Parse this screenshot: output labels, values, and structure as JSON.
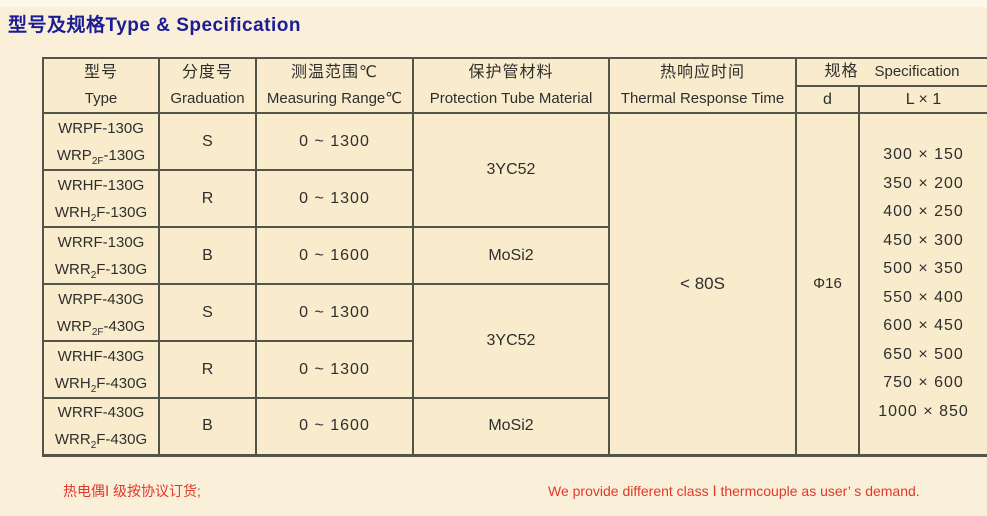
{
  "title": "型号及规格Type & Specification",
  "colors": {
    "background": "#FAF0DA",
    "cell_background": "#F9ECCC",
    "border": "#55544A",
    "title": "#1C1C96",
    "note_red": "#E0392B"
  },
  "table": {
    "headers": {
      "type": {
        "zh": "型号",
        "en": "Type"
      },
      "graduation": {
        "zh": "分度号",
        "en": "Graduation"
      },
      "range": {
        "zh": "测温范围℃",
        "en": "Measuring Range℃"
      },
      "material": {
        "zh": "保护管材料",
        "en": "Protection Tube Material"
      },
      "response": {
        "zh": "热响应时间",
        "en": "Thermal Response Time"
      },
      "spec": {
        "zh": "规格",
        "en": "Specification"
      },
      "d": "d",
      "l": "L × 1"
    },
    "rows": [
      {
        "models": [
          "WRPF-130G",
          "WRP~2F~-130G"
        ],
        "graduation": "S",
        "range": "0 ~ 1300"
      },
      {
        "models": [
          "WRHF-130G",
          "WRH~2~F-130G"
        ],
        "graduation": "R",
        "range": "0 ~ 1300"
      },
      {
        "models": [
          "WRRF-130G",
          "WRR~2~F-130G"
        ],
        "graduation": "B",
        "range": "0 ~ 1600"
      },
      {
        "models": [
          "WRPF-430G",
          "WRP~2F~-430G"
        ],
        "graduation": "S",
        "range": "0 ~ 1300"
      },
      {
        "models": [
          "WRHF-430G",
          "WRH~2~F-430G"
        ],
        "graduation": "R",
        "range": "0 ~ 1300"
      },
      {
        "models": [
          "WRRF-430G",
          "WRR~2~F-430G"
        ],
        "graduation": "B",
        "range": "0 ~ 1600"
      }
    ],
    "materials": [
      {
        "value": "3YC52"
      },
      {
        "value": "MoSi2"
      },
      {
        "value": "3YC52"
      },
      {
        "value": "MoSi2"
      }
    ],
    "thermal_response": "< 80S",
    "d_value": "Φ16",
    "l_values": [
      "300 × 150",
      "350 × 200",
      "400 × 250",
      "450 × 300",
      "500 × 350",
      "550 × 400",
      "600 × 450",
      "650 × 500",
      "750 × 600",
      "1000 × 850"
    ]
  },
  "notes": {
    "zh": "热电偶Ⅰ 级按协议订货;",
    "en": "We provide different class Ⅰ thermcouple as user’ s demand."
  }
}
